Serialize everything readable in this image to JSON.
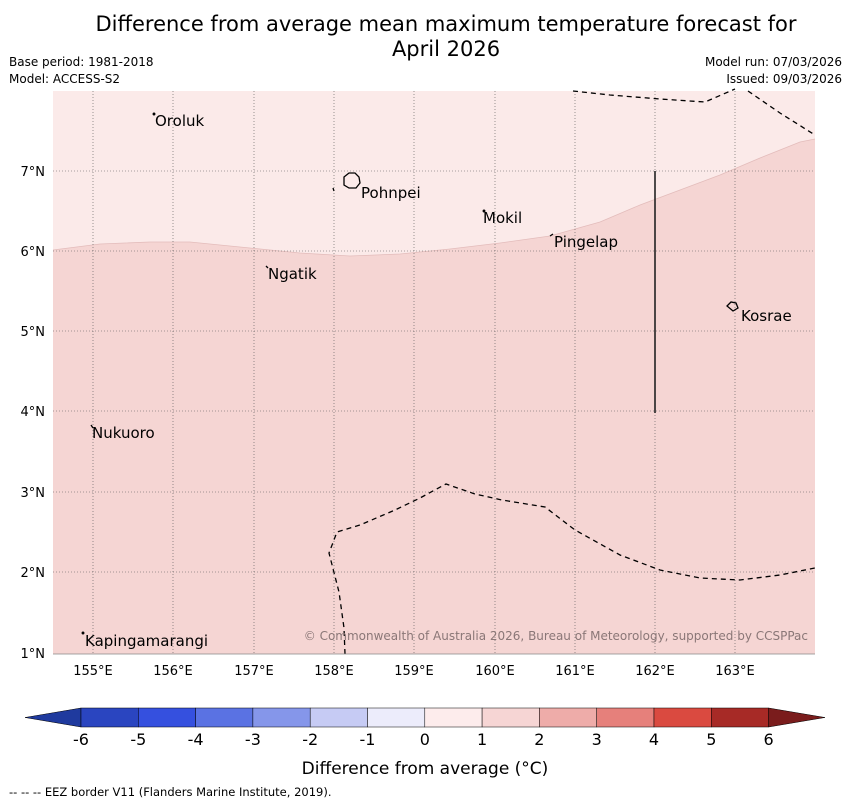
{
  "title_line1": "Difference from average mean maximum temperature forecast for",
  "title_line2": "April 2026",
  "base_period": "Base period: 1981-2018",
  "model": "Model: ACCESS-S2",
  "model_run": "Model run: 07/03/2026",
  "issued": "Issued: 09/03/2026",
  "map": {
    "lat_ticks": [
      "7°N",
      "6°N",
      "5°N",
      "4°N",
      "3°N",
      "2°N",
      "1°N"
    ],
    "lon_ticks": [
      "155°E",
      "156°E",
      "157°E",
      "158°E",
      "159°E",
      "160°E",
      "161°E",
      "162°E",
      "163°E"
    ],
    "places": [
      {
        "name": "Oroluk"
      },
      {
        "name": "Pohnpei"
      },
      {
        "name": "Mokil"
      },
      {
        "name": "Pingelap"
      },
      {
        "name": "Ngatik"
      },
      {
        "name": "Kosrae"
      },
      {
        "name": "Nukuoro"
      },
      {
        "name": "Kapingamarangi"
      }
    ],
    "copyright": "© Commonwealth of Australia 2026, Bureau of Meteorology, supported by CCSPPac",
    "shading": {
      "upper_region_color": "#fbeae9",
      "lower_region_color": "#f5d5d3"
    }
  },
  "colorbar": {
    "colors": [
      "#1f3a9e",
      "#2a45c0",
      "#3550df",
      "#5a72e3",
      "#8596ea",
      "#c6cbf4",
      "#ececfb",
      "#fdecec",
      "#f6d5d4",
      "#eeaca9",
      "#e6807b",
      "#da4a40",
      "#a72a26",
      "#7a1c1c"
    ],
    "ticks": [
      "-6",
      "-5",
      "-4",
      "-3",
      "-2",
      "-1",
      "0",
      "1",
      "2",
      "3",
      "4",
      "5",
      "6"
    ],
    "label": "Difference from average (°C)"
  },
  "footer": "--  --  -- EEZ border V11 (Flanders Marine Institute, 2019)."
}
